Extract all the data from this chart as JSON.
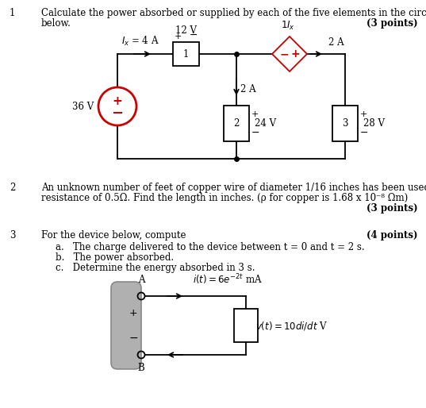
{
  "bg_color": "#ffffff",
  "q1_number": "1",
  "q1_text_line1": "Calculate the power absorbed or supplied by each of the five elements in the circuit shown",
  "q1_text_line2": "below.",
  "q1_points": "(3 points)",
  "q2_number": "2",
  "q2_text_line1": "An unknown number of feet of copper wire of diameter 1/16 inches has been used to form a",
  "q2_text_line2": "resistance of 0.5Ω. Find the length in inches. (ρ for copper is 1.68 x 10⁻⁸ Ωm)",
  "q2_points": "(3 points)",
  "q3_number": "3",
  "q3_text": "For the device below, compute",
  "q3_points": "(4 points)",
  "q3_a": "a.   The charge delivered to the device between t = 0 and t = 2 s.",
  "q3_b": "b.   The power absorbed.",
  "q3_c": "c.   Determine the energy absorbed in 3 s.",
  "black": "#000000",
  "red": "#cc0000",
  "gray_fill": "#b0b0b0",
  "gray_edge": "#888888",
  "white": "#ffffff",
  "lw": 1.3,
  "fs": 8.5
}
